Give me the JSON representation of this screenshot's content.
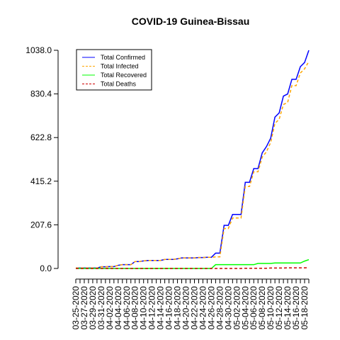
{
  "chart_data": {
    "type": "line",
    "title": "COVID-19 Guinea-Bissau",
    "xlabel": "",
    "ylabel": "",
    "x": [
      "03-25-2020",
      "03-26-2020",
      "03-27-2020",
      "03-28-2020",
      "03-29-2020",
      "03-30-2020",
      "03-31-2020",
      "04-01-2020",
      "04-02-2020",
      "04-03-2020",
      "04-04-2020",
      "04-05-2020",
      "04-06-2020",
      "04-07-2020",
      "04-08-2020",
      "04-09-2020",
      "04-10-2020",
      "04-11-2020",
      "04-12-2020",
      "04-13-2020",
      "04-14-2020",
      "04-15-2020",
      "04-16-2020",
      "04-17-2020",
      "04-18-2020",
      "04-19-2020",
      "04-20-2020",
      "04-21-2020",
      "04-22-2020",
      "04-23-2020",
      "04-24-2020",
      "04-25-2020",
      "04-26-2020",
      "04-27-2020",
      "04-28-2020",
      "04-29-2020",
      "04-30-2020",
      "05-01-2020",
      "05-02-2020",
      "05-03-2020",
      "05-04-2020",
      "05-05-2020",
      "05-06-2020",
      "05-07-2020",
      "05-08-2020",
      "05-09-2020",
      "05-10-2020",
      "05-11-2020",
      "05-12-2020",
      "05-13-2020",
      "05-14-2020",
      "05-15-2020",
      "05-16-2020",
      "05-17-2020",
      "05-18-2020",
      "05-19-2020"
    ],
    "x_tick_labels": [
      "03-25-2020",
      "03-27-2020",
      "03-29-2020",
      "03-31-2020",
      "04-02-2020",
      "04-04-2020",
      "04-06-2020",
      "04-08-2020",
      "04-10-2020",
      "04-12-2020",
      "04-14-2020",
      "04-16-2020",
      "04-18-2020",
      "04-20-2020",
      "04-22-2020",
      "04-24-2020",
      "04-26-2020",
      "04-28-2020",
      "04-30-2020",
      "05-02-2020",
      "05-04-2020",
      "05-06-2020",
      "05-08-2020",
      "05-10-2020",
      "05-12-2020",
      "05-14-2020",
      "05-16-2020",
      "05-18-2020"
    ],
    "y_ticks": [
      "0.0",
      "207.6",
      "415.2",
      "622.8",
      "830.4",
      "1038.0"
    ],
    "ylim": [
      0,
      1038
    ],
    "grid": false,
    "legend_position": "top-left",
    "series": [
      {
        "name": "Total Confirmed",
        "color": "#0000ff",
        "dash": "solid",
        "values": [
          2,
          2,
          2,
          2,
          2,
          2,
          8,
          8,
          9,
          9,
          15,
          18,
          18,
          18,
          33,
          33,
          36,
          38,
          38,
          38,
          38,
          43,
          43,
          43,
          46,
          50,
          50,
          50,
          50,
          52,
          52,
          53,
          53,
          73,
          73,
          205,
          205,
          257,
          257,
          257,
          410,
          410,
          475,
          475,
          550,
          580,
          620,
          720,
          740,
          820,
          830,
          900,
          900,
          960,
          980,
          1038
        ]
      },
      {
        "name": "Total Infected",
        "color": "#ffa500",
        "dash": "dashed",
        "values": [
          2,
          2,
          2,
          2,
          2,
          2,
          8,
          8,
          9,
          9,
          15,
          18,
          18,
          18,
          33,
          33,
          36,
          38,
          38,
          38,
          38,
          43,
          43,
          43,
          46,
          50,
          50,
          50,
          50,
          52,
          52,
          53,
          53,
          55,
          55,
          190,
          190,
          240,
          240,
          240,
          390,
          390,
          460,
          460,
          530,
          555,
          600,
          690,
          710,
          780,
          790,
          870,
          870,
          930,
          950,
          985
        ]
      },
      {
        "name": "Total Recovered",
        "color": "#00ff00",
        "dash": "solid",
        "values": [
          0,
          0,
          0,
          0,
          0,
          0,
          0,
          0,
          0,
          0,
          0,
          0,
          0,
          0,
          0,
          0,
          0,
          0,
          0,
          0,
          0,
          0,
          0,
          0,
          0,
          0,
          0,
          0,
          0,
          0,
          0,
          0,
          0,
          18,
          18,
          18,
          18,
          18,
          18,
          18,
          18,
          18,
          18,
          24,
          24,
          24,
          24,
          26,
          26,
          26,
          26,
          26,
          26,
          26,
          35,
          42
        ]
      },
      {
        "name": "Total Deaths",
        "color": "#cc0000",
        "dash": "dashed",
        "values": [
          0,
          0,
          0,
          0,
          0,
          0,
          0,
          0,
          0,
          0,
          0,
          0,
          0,
          0,
          0,
          0,
          0,
          0,
          0,
          0,
          0,
          0,
          0,
          0,
          0,
          0,
          0,
          0,
          0,
          0,
          0,
          0,
          0,
          0,
          0,
          0,
          0,
          0,
          0,
          0,
          1,
          1,
          1,
          1,
          1,
          1,
          2,
          2,
          2,
          2,
          3,
          3,
          3,
          3,
          3,
          4
        ]
      }
    ]
  }
}
